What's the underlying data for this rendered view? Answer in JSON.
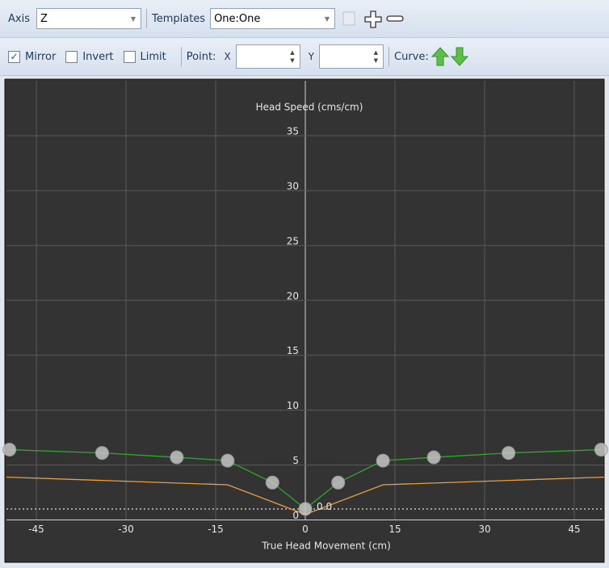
{
  "toolbar": {
    "axis_label": "Axis",
    "axis_value": "Z",
    "templates_label": "Templates",
    "templates_value": "One:One",
    "checkboxes": [
      {
        "label": "Mirror",
        "checked": true
      },
      {
        "label": "Invert",
        "checked": false
      },
      {
        "label": "Limit",
        "checked": false
      }
    ],
    "point_label": "Point:",
    "x_label": "X",
    "y_label": "Y",
    "curve_label": "Curve:"
  },
  "chart_data": {
    "type": "line",
    "ylabel": "Head Speed (cms/cm)",
    "xlabel": "True Head Movement (cm)",
    "annotation": "0.0",
    "xlim": [
      -50,
      50
    ],
    "ylim": [
      0,
      40
    ],
    "xticks": [
      -45,
      -30,
      -15,
      0,
      15,
      30,
      45
    ],
    "yticks": [
      0,
      5,
      10,
      15,
      20,
      25,
      30,
      35
    ],
    "grid": true,
    "series": [
      {
        "color": "#cfcfcf",
        "x": [
          -50,
          50
        ],
        "values": [
          1,
          1
        ],
        "dashed": true,
        "markers": false
      },
      {
        "color": "#e8a040",
        "x": [
          -50,
          -13,
          0,
          13,
          50
        ],
        "values": [
          3.9,
          3.2,
          0.5,
          3.2,
          3.9
        ],
        "dashed": false,
        "markers": false
      },
      {
        "color": "#2ea82e",
        "x": [
          -49.5,
          -34,
          -21.5,
          -13,
          -5.5,
          0,
          5.5,
          13,
          21.5,
          34,
          49.5
        ],
        "values": [
          6.4,
          6.1,
          5.7,
          5.4,
          3.4,
          1,
          3.4,
          5.4,
          5.7,
          6.1,
          6.4
        ],
        "dashed": false,
        "markers": true
      }
    ]
  }
}
